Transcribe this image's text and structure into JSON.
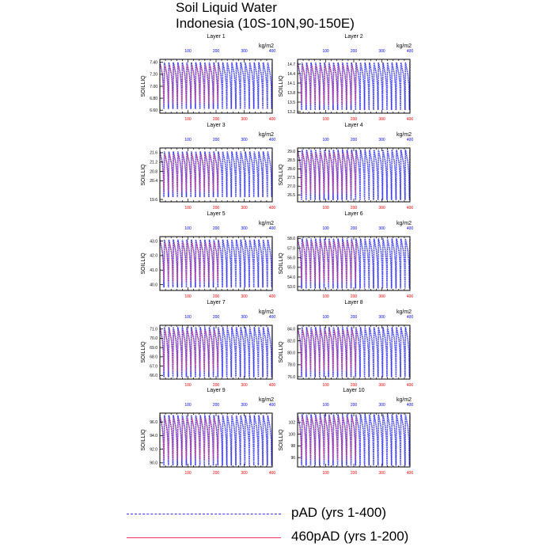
{
  "title": {
    "line1": "Soil Liquid Water",
    "line2": "Indonesia (10S-10N,90-150E)"
  },
  "colors": {
    "series1": "#3333ee",
    "series2": "#ee3366",
    "axis_top": "#0000ff",
    "axis_bottom": "#ff0000",
    "frame": "#000000"
  },
  "legend": [
    {
      "label": "pAD (yrs 1-400)",
      "style": "dashed",
      "color": "#3333ee"
    },
    {
      "label": "460pAD (yrs 1-200)",
      "style": "solid",
      "color": "#ee3366"
    }
  ],
  "chart_data": [
    {
      "type": "line",
      "title": "Layer 1",
      "ylabel": "SOILLIQ",
      "units": "kg/m2",
      "top_ticks": [
        "100",
        "200",
        "300",
        "400"
      ],
      "bottom_ticks": [
        "100",
        "200",
        "300",
        "400"
      ],
      "yticks": [
        "7.40",
        "7.20",
        "7.00",
        "6.80",
        "6.60"
      ],
      "ylim": [
        6.55,
        7.45
      ],
      "oscillation": {
        "low": 6.62,
        "high": 7.4,
        "cycles": 25
      },
      "series": [
        {
          "name": "pAD (yrs 1-400)",
          "x_range": [
            1,
            400
          ]
        },
        {
          "name": "460pAD (yrs 1-200)",
          "x_range": [
            1,
            200
          ]
        }
      ]
    },
    {
      "type": "line",
      "title": "Layer 2",
      "ylabel": "SOILLIQ",
      "units": "kg/m2",
      "top_ticks": [
        "100",
        "200",
        "300",
        "400"
      ],
      "bottom_ticks": [
        "100",
        "200",
        "300",
        "400"
      ],
      "yticks": [
        "14.7",
        "14.4",
        "14.1",
        "13.8",
        "13.5",
        "13.2"
      ],
      "ylim": [
        13.15,
        14.85
      ],
      "oscillation": {
        "low": 13.25,
        "high": 14.75,
        "cycles": 25
      },
      "series": [
        {
          "name": "pAD (yrs 1-400)",
          "x_range": [
            1,
            400
          ]
        },
        {
          "name": "460pAD (yrs 1-200)",
          "x_range": [
            1,
            200
          ]
        }
      ]
    },
    {
      "type": "line",
      "title": "Layer 3",
      "ylabel": "SOILLIQ",
      "units": "kg/m2",
      "top_ticks": [
        "100",
        "200",
        "300",
        "400"
      ],
      "bottom_ticks": [
        "100",
        "200",
        "300",
        "400"
      ],
      "yticks": [
        "21.6",
        "21.2",
        "20.8",
        "20.4",
        "19.6"
      ],
      "ylim": [
        19.5,
        21.8
      ],
      "oscillation": {
        "low": 19.7,
        "high": 21.65,
        "cycles": 25
      },
      "series": [
        {
          "name": "pAD (yrs 1-400)",
          "x_range": [
            1,
            400
          ]
        },
        {
          "name": "460pAD (yrs 1-200)",
          "x_range": [
            1,
            200
          ]
        }
      ]
    },
    {
      "type": "line",
      "title": "Layer 4",
      "ylabel": "SOILLIQ",
      "units": "kg/m2",
      "top_ticks": [
        "100",
        "200",
        "300",
        "400"
      ],
      "bottom_ticks": [
        "100",
        "200",
        "300",
        "400"
      ],
      "yticks": [
        "29.0",
        "28.5",
        "28.0",
        "27.5",
        "27.0",
        "26.5"
      ],
      "ylim": [
        26.1,
        29.2
      ],
      "oscillation": {
        "low": 26.2,
        "high": 29.1,
        "cycles": 25
      },
      "series": [
        {
          "name": "pAD (yrs 1-400)",
          "x_range": [
            1,
            400
          ]
        },
        {
          "name": "460pAD (yrs 1-200)",
          "x_range": [
            1,
            200
          ]
        }
      ]
    },
    {
      "type": "line",
      "title": "Layer 5",
      "ylabel": "SOILLIQ",
      "units": "kg/m2",
      "top_ticks": [
        "100",
        "200",
        "300",
        "400"
      ],
      "bottom_ticks": [
        "100",
        "200",
        "300",
        "400"
      ],
      "yticks": [
        "43.0",
        "42.0",
        "41.0",
        "40.0"
      ],
      "ylim": [
        39.6,
        43.3
      ],
      "oscillation": {
        "low": 39.8,
        "high": 43.1,
        "cycles": 25
      },
      "series": [
        {
          "name": "pAD (yrs 1-400)",
          "x_range": [
            1,
            400
          ]
        },
        {
          "name": "460pAD (yrs 1-200)",
          "x_range": [
            1,
            200
          ]
        }
      ]
    },
    {
      "type": "line",
      "title": "Layer 6",
      "ylabel": "SOILLIQ",
      "units": "kg/m2",
      "top_ticks": [
        "100",
        "200",
        "300",
        "400"
      ],
      "bottom_ticks": [
        "100",
        "200",
        "300",
        "400"
      ],
      "yticks": [
        "58.0",
        "57.0",
        "56.0",
        "55.0",
        "54.0",
        "53.0"
      ],
      "ylim": [
        52.6,
        58.2
      ],
      "oscillation": {
        "low": 52.8,
        "high": 58.0,
        "cycles": 25
      },
      "series": [
        {
          "name": "pAD (yrs 1-400)",
          "x_range": [
            1,
            400
          ]
        },
        {
          "name": "460pAD (yrs 1-200)",
          "x_range": [
            1,
            200
          ]
        }
      ]
    },
    {
      "type": "line",
      "title": "Layer 7",
      "ylabel": "SOILLIQ",
      "units": "kg/m2",
      "top_ticks": [
        "100",
        "200",
        "300",
        "400"
      ],
      "bottom_ticks": [
        "100",
        "200",
        "300",
        "400"
      ],
      "yticks": [
        "71.0",
        "70.0",
        "69.0",
        "68.0",
        "67.0",
        "66.0"
      ],
      "ylim": [
        65.6,
        71.4
      ],
      "oscillation": {
        "low": 65.8,
        "high": 71.2,
        "cycles": 25
      },
      "series": [
        {
          "name": "pAD (yrs 1-400)",
          "x_range": [
            1,
            400
          ]
        },
        {
          "name": "460pAD (yrs 1-200)",
          "x_range": [
            1,
            200
          ]
        }
      ]
    },
    {
      "type": "line",
      "title": "Layer 8",
      "ylabel": "SOILLIQ",
      "units": "kg/m2",
      "top_ticks": [
        "100",
        "200",
        "300",
        "400"
      ],
      "bottom_ticks": [
        "100",
        "200",
        "300",
        "400"
      ],
      "yticks": [
        "84.0",
        "82.0",
        "80.0",
        "78.0",
        "76.0"
      ],
      "ylim": [
        75.6,
        84.6
      ],
      "oscillation": {
        "low": 75.9,
        "high": 84.3,
        "cycles": 25
      },
      "series": [
        {
          "name": "pAD (yrs 1-400)",
          "x_range": [
            1,
            400
          ]
        },
        {
          "name": "460pAD (yrs 1-200)",
          "x_range": [
            1,
            200
          ]
        }
      ]
    },
    {
      "type": "line",
      "title": "Layer 9",
      "ylabel": "SOILLIQ",
      "units": "kg/m2",
      "top_ticks": [
        "100",
        "200",
        "300",
        "400"
      ],
      "bottom_ticks": [
        "100",
        "200",
        "300",
        "400"
      ],
      "yticks": [
        "96.0",
        "94.0",
        "92.0",
        "90.0"
      ],
      "ylim": [
        89.4,
        97.3
      ],
      "oscillation": {
        "low": 89.6,
        "high": 97.0,
        "cycles": 25
      },
      "series": [
        {
          "name": "pAD (yrs 1-400)",
          "x_range": [
            1,
            400
          ]
        },
        {
          "name": "460pAD (yrs 1-200)",
          "x_range": [
            1,
            200
          ]
        }
      ]
    },
    {
      "type": "line",
      "title": "Layer 10",
      "ylabel": "SOILLIQ",
      "units": "kg/m2",
      "top_ticks": [
        "100",
        "200",
        "300",
        "400"
      ],
      "bottom_ticks": [
        "100",
        "200",
        "300",
        "400"
      ],
      "yticks": [
        "102",
        "100",
        "98",
        "96"
      ],
      "ylim": [
        94.4,
        103.6
      ],
      "oscillation": {
        "low": 94.6,
        "high": 103.4,
        "cycles": 25
      },
      "series": [
        {
          "name": "pAD (yrs 1-400)",
          "x_range": [
            1,
            400
          ]
        },
        {
          "name": "460pAD (yrs 1-200)",
          "x_range": [
            1,
            200
          ]
        }
      ]
    }
  ]
}
